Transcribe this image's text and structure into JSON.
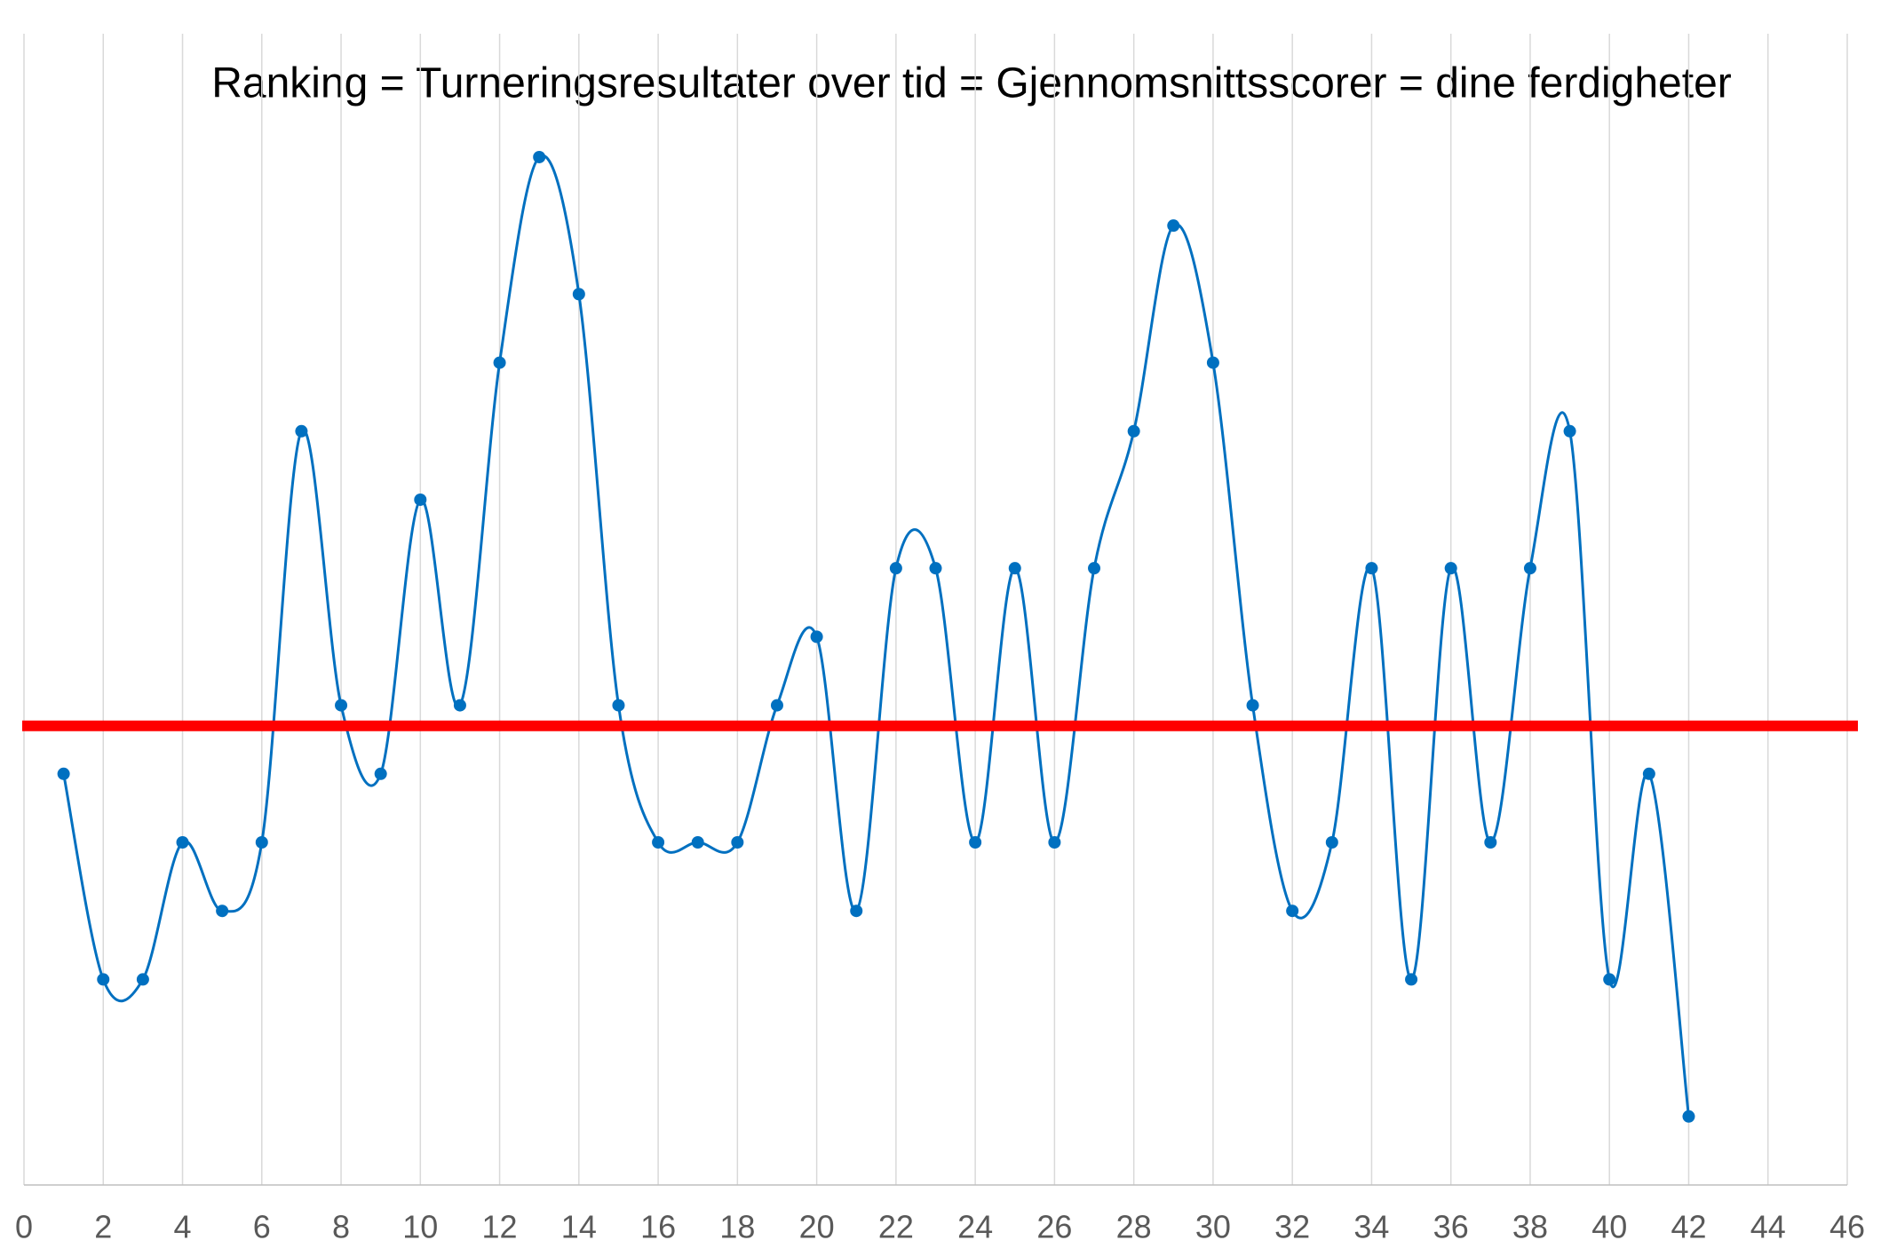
{
  "chart_data": {
    "type": "line",
    "title": "Ranking = Turneringsresultater over tid = Gjennomsnittsscorer = dine ferdigheter",
    "x": [
      1,
      2,
      3,
      4,
      5,
      6,
      7,
      8,
      9,
      10,
      11,
      12,
      13,
      14,
      15,
      16,
      17,
      18,
      19,
      20,
      21,
      22,
      23,
      24,
      25,
      26,
      27,
      28,
      29,
      30,
      31,
      32,
      33,
      34,
      35,
      36,
      37,
      38,
      39,
      40,
      41,
      42
    ],
    "values": [
      6,
      3,
      3,
      5,
      4,
      5,
      11,
      7,
      6,
      10,
      7,
      12,
      15,
      13,
      7,
      5,
      5,
      5,
      7,
      8,
      4,
      9,
      9,
      5,
      9,
      5,
      9,
      11,
      14,
      12,
      7,
      4,
      5,
      9,
      3,
      9,
      5,
      9,
      11,
      3,
      6,
      1
    ],
    "color": "#0070c0",
    "smooth": true,
    "xlim": [
      0,
      46
    ],
    "xticks": [
      0,
      2,
      4,
      6,
      8,
      10,
      12,
      14,
      16,
      18,
      20,
      22,
      24,
      26,
      28,
      30,
      32,
      34,
      36,
      38,
      40,
      42,
      44,
      46
    ],
    "ylim": [
      0,
      16.8
    ],
    "grid": true,
    "reference_line": {
      "value": 6.7,
      "color": "#ff0000"
    }
  }
}
